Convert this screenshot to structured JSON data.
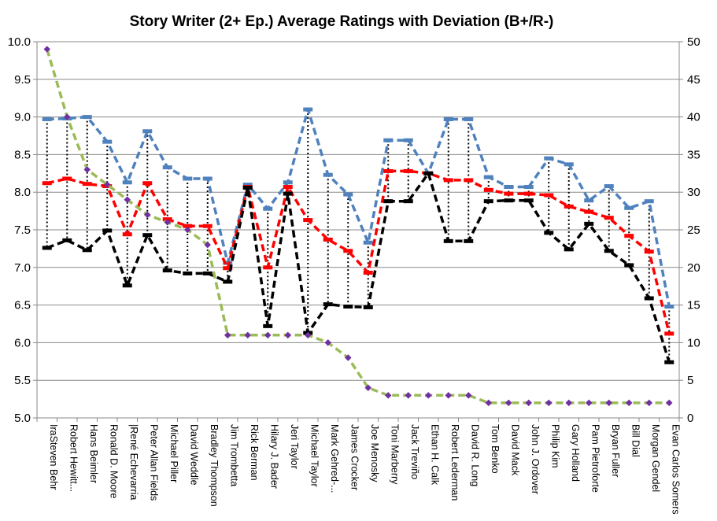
{
  "chart_data": {
    "type": "line",
    "title": "Story Writer (2+ Ep.) Average Ratings with Deviation (B+/R-)",
    "categories": [
      "IraSteven Behr",
      "Robert Hewitt...",
      "Hans Beimler",
      "Ronald D. Moore",
      "|René Echevarria",
      "Peter Allan Fields",
      "Michael Piller",
      "David Weddle",
      "Bradley Thompson",
      "Jim Trombetta",
      "Rick Berman",
      "Hilary J. Bader",
      "Jeri Taylor",
      "Michael Taylor",
      "Mark Gehred-...",
      "James Crocker",
      "Joe Menosky",
      "Toni Marberry",
      "Jack Treviño",
      "Ethan H. Calk",
      "Robert Lederman",
      "David R. Long",
      "Tom Benko",
      "David Mack",
      "John J. Ordover",
      "Philip Kim",
      "Gary Holland",
      "Pam Pietroforte",
      "Bryan Fuller",
      "Bill Dial",
      "Morgan Gendel",
      "Evan Carlos Somers"
    ],
    "y_left": {
      "min": 5.0,
      "max": 10.0,
      "step": 0.5,
      "tick_labels": [
        "5.0",
        "5.5",
        "6.0",
        "6.5",
        "7.0",
        "7.5",
        "8.0",
        "8.5",
        "9.0",
        "9.5",
        "10.0"
      ]
    },
    "y_right": {
      "min": 0,
      "max": 50,
      "step": 5,
      "tick_labels": [
        "0",
        "5",
        "10",
        "15",
        "20",
        "25",
        "30",
        "35",
        "40",
        "45",
        "50"
      ]
    },
    "grid": "horizontal",
    "series": [
      {
        "axis": "left",
        "color": "#4f81bd",
        "style": "dashed",
        "values": [
          8.97,
          8.98,
          9.0,
          8.67,
          8.13,
          8.81,
          8.33,
          8.18,
          8.18,
          7.06,
          8.1,
          7.78,
          8.13,
          9.1,
          8.23,
          7.97,
          7.33,
          8.69,
          8.69,
          8.25,
          8.97,
          8.97,
          8.2,
          8.07,
          8.07,
          8.45,
          8.37,
          7.89,
          8.08,
          7.79,
          7.88,
          6.48
        ]
      },
      {
        "axis": "left",
        "color": "#ff0000",
        "style": "dashed",
        "values": [
          8.12,
          8.18,
          8.11,
          8.08,
          7.44,
          8.12,
          7.64,
          7.55,
          7.55,
          6.99,
          8.07,
          7.0,
          8.07,
          7.63,
          7.37,
          7.22,
          6.93,
          8.28,
          8.28,
          8.25,
          8.16,
          8.16,
          8.03,
          7.98,
          7.98,
          7.96,
          7.81,
          7.74,
          7.66,
          7.42,
          7.21,
          6.12
        ]
      },
      {
        "axis": "left",
        "color": "#000000",
        "style": "dashed",
        "values": [
          7.26,
          7.36,
          7.23,
          7.49,
          6.76,
          7.43,
          6.96,
          6.92,
          6.92,
          6.81,
          8.06,
          6.22,
          7.98,
          6.13,
          6.51,
          6.48,
          6.47,
          7.88,
          7.88,
          8.25,
          7.35,
          7.35,
          7.88,
          7.89,
          7.89,
          7.46,
          7.24,
          7.58,
          7.22,
          7.03,
          6.59,
          5.74
        ]
      },
      {
        "axis": "right",
        "color": "#9bbb59",
        "style": "dashed",
        "marker_color": "#7030a0",
        "values": [
          49,
          40,
          33,
          31,
          29,
          27,
          26,
          25,
          23,
          11,
          11,
          11,
          11,
          11,
          10,
          8,
          4,
          3,
          3,
          3,
          3,
          3,
          2,
          2,
          2,
          2,
          2,
          2,
          2,
          2,
          2,
          2
        ]
      }
    ],
    "error_bars": {
      "style": "dotted",
      "color": "#000000",
      "from_series": 0,
      "to_series": 2
    }
  }
}
